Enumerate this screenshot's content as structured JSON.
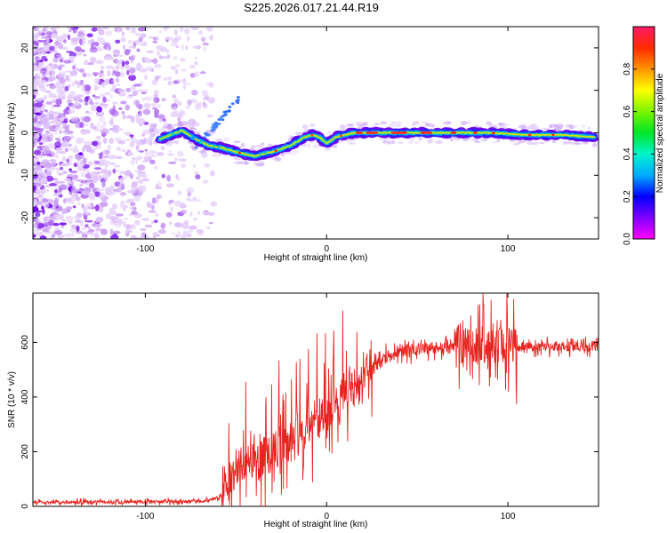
{
  "title": "S225.2026.017.21.44.R19",
  "colors": {
    "axis": "#000000",
    "snr_line": "#e8231f",
    "background": "#ffffff"
  },
  "chart_data": [
    {
      "type": "heatmap",
      "xlabel": "Height of straight line (km)",
      "ylabel": "Frequency (Hz)",
      "xlim": [
        -162,
        150
      ],
      "ylim": [
        -25,
        25
      ],
      "xticks": [
        -100,
        0,
        100
      ],
      "xtick_labels": [
        "-100",
        "0",
        "100"
      ],
      "yticks": [
        -20,
        -10,
        0,
        10,
        20
      ],
      "ytick_labels": [
        "-20",
        "-10",
        "0",
        "10",
        "20"
      ],
      "colorbar": {
        "label": "Normalized spectral amplitude",
        "range": [
          0,
          1
        ],
        "ticks": [
          0.0,
          0.2,
          0.4,
          0.6,
          0.8
        ],
        "tick_labels": [
          "0.0",
          "0.2",
          "0.4",
          "0.6",
          "0.8"
        ]
      },
      "ridge": {
        "x": [
          -92,
          -80,
          -72,
          -65,
          -58,
          -50,
          -40,
          -30,
          -20,
          -12,
          -8,
          -4,
          0,
          5,
          15,
          30,
          60,
          90,
          110,
          130,
          148
        ],
        "y": [
          -1.5,
          0.5,
          -1.5,
          -3,
          -3.5,
          -4.5,
          -5.5,
          -4.5,
          -3,
          -1,
          -0.5,
          -1,
          -2.5,
          -1,
          0,
          0,
          0,
          0,
          -0.5,
          -0.5,
          -1
        ]
      }
    },
    {
      "type": "line",
      "xlabel": "Height of straight line (km)",
      "ylabel": "SNR (10 * v/v)",
      "xlim": [
        -162,
        150
      ],
      "ylim": [
        0,
        780
      ],
      "xticks": [
        -100,
        0,
        100
      ],
      "xtick_labels": [
        "-100",
        "0",
        "100"
      ],
      "yticks": [
        0,
        200,
        400,
        600
      ],
      "ytick_labels": [
        "0",
        "200",
        "400",
        "600"
      ],
      "trend": {
        "x": [
          -162,
          -70,
          -60,
          -55,
          -50,
          -40,
          -30,
          -20,
          -10,
          0,
          10,
          20,
          30,
          40,
          60,
          80,
          100,
          150
        ],
        "y": [
          15,
          18,
          30,
          60,
          140,
          170,
          200,
          240,
          290,
          340,
          400,
          470,
          530,
          570,
          580,
          600,
          585,
          585
        ]
      }
    }
  ]
}
